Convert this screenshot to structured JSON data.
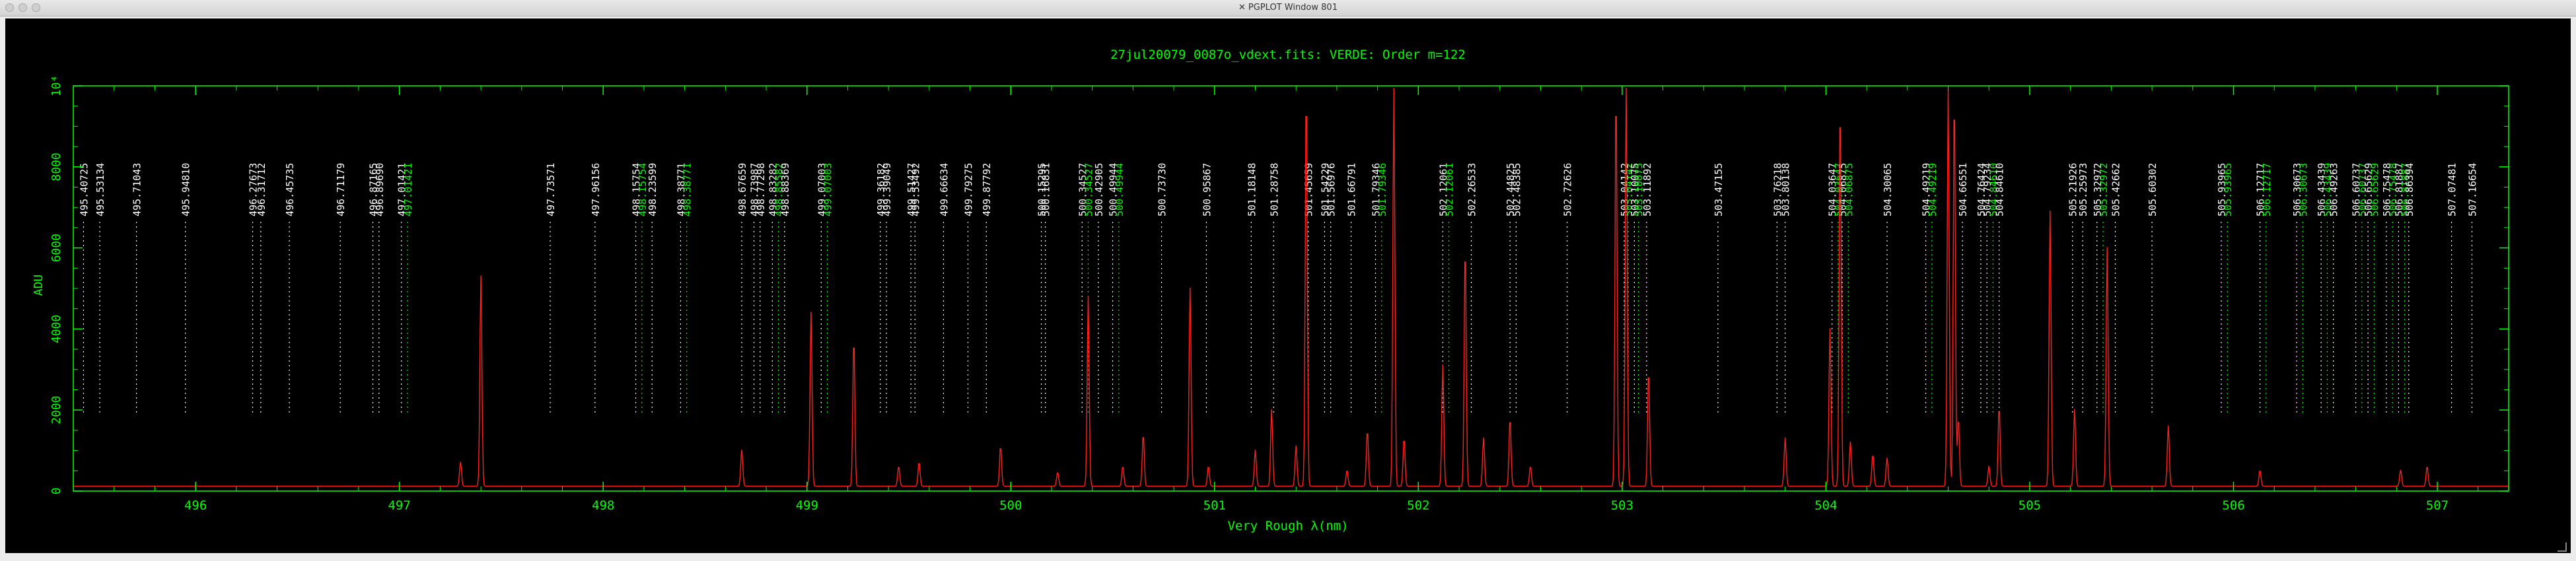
{
  "window": {
    "title": "PGPLOT Window 801",
    "x_icon": "x11-icon",
    "buttons": [
      "close-button",
      "minimize-button",
      "zoom-button"
    ]
  },
  "colors": {
    "axes": "#00ff00",
    "spectrum": "#ff2020",
    "label_white": "#ffffff",
    "label_green": "#00ff00",
    "background": "#000000"
  },
  "chart_data": {
    "type": "line",
    "title": "27jul20079_0087o_vdext.fits: VERDE: Order m=122",
    "xlabel": "Very Rough λ(nm)",
    "ylabel": "ADU",
    "xlim": [
      495.4,
      507.35
    ],
    "ylim": [
      0,
      10000
    ],
    "x_ticks": [
      496,
      497,
      498,
      499,
      500,
      501,
      502,
      503,
      504,
      505,
      506,
      507
    ],
    "y_ticks": [
      {
        "v": 0,
        "t": "0"
      },
      {
        "v": 2000,
        "t": "2000"
      },
      {
        "v": 4000,
        "t": "4000"
      },
      {
        "v": 6000,
        "t": "6000"
      },
      {
        "v": 8000,
        "t": "8000"
      },
      {
        "v": 10000,
        "t": "10⁴"
      }
    ],
    "grid": false,
    "spectrum": {
      "baseline": 120,
      "peaks": [
        [
          497.3,
          600
        ],
        [
          497.4,
          5200
        ],
        [
          498.68,
          900
        ],
        [
          499.02,
          4300
        ],
        [
          499.23,
          3700
        ],
        [
          499.45,
          500
        ],
        [
          499.55,
          600
        ],
        [
          499.95,
          1000
        ],
        [
          500.23,
          350
        ],
        [
          500.38,
          4700
        ],
        [
          500.55,
          500
        ],
        [
          500.65,
          1300
        ],
        [
          500.88,
          4900
        ],
        [
          500.97,
          500
        ],
        [
          501.2,
          900
        ],
        [
          501.28,
          1900
        ],
        [
          501.4,
          1000
        ],
        [
          501.45,
          9900
        ],
        [
          501.65,
          400
        ],
        [
          501.75,
          1400
        ],
        [
          501.88,
          9900
        ],
        [
          501.93,
          1200
        ],
        [
          502.12,
          3000
        ],
        [
          502.23,
          6000
        ],
        [
          502.32,
          1200
        ],
        [
          502.45,
          1700
        ],
        [
          502.55,
          500
        ],
        [
          502.97,
          9900
        ],
        [
          503.02,
          9900
        ],
        [
          503.13,
          2900
        ],
        [
          503.8,
          1200
        ],
        [
          504.02,
          3900
        ],
        [
          504.07,
          9600
        ],
        [
          504.12,
          1100
        ],
        [
          504.23,
          800
        ],
        [
          504.3,
          700
        ],
        [
          504.6,
          9800
        ],
        [
          504.63,
          9800
        ],
        [
          504.65,
          1700
        ],
        [
          504.8,
          500
        ],
        [
          504.85,
          2000
        ],
        [
          505.1,
          6800
        ],
        [
          505.22,
          1900
        ],
        [
          505.38,
          5900
        ],
        [
          505.68,
          1500
        ],
        [
          506.13,
          400
        ],
        [
          506.82,
          400
        ],
        [
          506.95,
          500
        ]
      ]
    },
    "line_labels": [
      {
        "x": 495.45,
        "t": "495.40725",
        "c": "white"
      },
      {
        "x": 495.53,
        "t": "495.53134",
        "c": "white"
      },
      {
        "x": 495.71,
        "t": "495.71043",
        "c": "white"
      },
      {
        "x": 495.95,
        "t": "495.94810",
        "c": "white"
      },
      {
        "x": 496.28,
        "t": "496.27673",
        "c": "white"
      },
      {
        "x": 496.32,
        "t": "496.31712",
        "c": "white"
      },
      {
        "x": 496.46,
        "t": "496.45735",
        "c": "white"
      },
      {
        "x": 496.71,
        "t": "496.71179",
        "c": "white"
      },
      {
        "x": 496.87,
        "t": "496.87165",
        "c": "white"
      },
      {
        "x": 496.9,
        "t": "496.89690",
        "c": "white"
      },
      {
        "x": 497.01,
        "t": "497.01421",
        "c": "white"
      },
      {
        "x": 497.04,
        "t": "497.01421",
        "c": "green"
      },
      {
        "x": 497.74,
        "t": "497.73571",
        "c": "white"
      },
      {
        "x": 497.96,
        "t": "497.96156",
        "c": "white"
      },
      {
        "x": 498.16,
        "t": "498.15754",
        "c": "white"
      },
      {
        "x": 498.19,
        "t": "498.15754",
        "c": "green"
      },
      {
        "x": 498.24,
        "t": "498.23599",
        "c": "white"
      },
      {
        "x": 498.38,
        "t": "498.38771",
        "c": "white"
      },
      {
        "x": 498.41,
        "t": "498.38771",
        "c": "green"
      },
      {
        "x": 498.68,
        "t": "498.67659",
        "c": "white"
      },
      {
        "x": 498.74,
        "t": "498.73987",
        "c": "white"
      },
      {
        "x": 498.77,
        "t": "498.77298",
        "c": "white"
      },
      {
        "x": 498.83,
        "t": "498.83282",
        "c": "white"
      },
      {
        "x": 498.86,
        "t": "498.85582",
        "c": "green"
      },
      {
        "x": 498.89,
        "t": "498.88369",
        "c": "white"
      },
      {
        "x": 499.07,
        "t": "499.07003",
        "c": "white"
      },
      {
        "x": 499.1,
        "t": "499.07003",
        "c": "green"
      },
      {
        "x": 499.36,
        "t": "499.36182",
        "c": "white"
      },
      {
        "x": 499.39,
        "t": "499.39049",
        "c": "white"
      },
      {
        "x": 499.51,
        "t": "499.51427",
        "c": "white"
      },
      {
        "x": 499.53,
        "t": "499.53492",
        "c": "white"
      },
      {
        "x": 499.67,
        "t": "499.66634",
        "c": "white"
      },
      {
        "x": 499.79,
        "t": "499.79275",
        "c": "white"
      },
      {
        "x": 499.88,
        "t": "499.87792",
        "c": "white"
      },
      {
        "x": 500.15,
        "t": "500.15295",
        "c": "white"
      },
      {
        "x": 500.17,
        "t": "500.16831",
        "c": "white"
      },
      {
        "x": 500.35,
        "t": "500.34527",
        "c": "white"
      },
      {
        "x": 500.38,
        "t": "500.34527",
        "c": "green"
      },
      {
        "x": 500.43,
        "t": "500.42905",
        "c": "white"
      },
      {
        "x": 500.5,
        "t": "500.49944",
        "c": "white"
      },
      {
        "x": 500.53,
        "t": "500.49944",
        "c": "green"
      },
      {
        "x": 500.74,
        "t": "500.73730",
        "c": "white"
      },
      {
        "x": 500.96,
        "t": "500.95867",
        "c": "white"
      },
      {
        "x": 501.18,
        "t": "501.18148",
        "c": "white"
      },
      {
        "x": 501.29,
        "t": "501.28758",
        "c": "white"
      },
      {
        "x": 501.46,
        "t": "501.45659",
        "c": "white"
      },
      {
        "x": 501.54,
        "t": "501.54229",
        "c": "white"
      },
      {
        "x": 501.57,
        "t": "501.56976",
        "c": "white"
      },
      {
        "x": 501.67,
        "t": "501.66791",
        "c": "white"
      },
      {
        "x": 501.79,
        "t": "501.79346",
        "c": "white"
      },
      {
        "x": 501.82,
        "t": "501.79346",
        "c": "green"
      },
      {
        "x": 502.12,
        "t": "502.12061",
        "c": "white"
      },
      {
        "x": 502.15,
        "t": "502.12061",
        "c": "green"
      },
      {
        "x": 502.26,
        "t": "502.26533",
        "c": "white"
      },
      {
        "x": 502.45,
        "t": "502.44825",
        "c": "white"
      },
      {
        "x": 502.48,
        "t": "502.48385",
        "c": "white"
      },
      {
        "x": 502.73,
        "t": "502.72626",
        "c": "white"
      },
      {
        "x": 503.01,
        "t": "503.04142",
        "c": "white"
      },
      {
        "x": 503.03,
        "t": "503.04142",
        "c": "green"
      },
      {
        "x": 503.06,
        "t": "503.10075",
        "c": "white"
      },
      {
        "x": 503.08,
        "t": "503.10075",
        "c": "green"
      },
      {
        "x": 503.12,
        "t": "503.11892",
        "c": "white"
      },
      {
        "x": 503.47,
        "t": "503.47155",
        "c": "white"
      },
      {
        "x": 503.76,
        "t": "503.76218",
        "c": "white"
      },
      {
        "x": 503.8,
        "t": "503.80138",
        "c": "white"
      },
      {
        "x": 504.03,
        "t": "504.03647",
        "c": "white"
      },
      {
        "x": 504.06,
        "t": "504.03647",
        "c": "green"
      },
      {
        "x": 504.08,
        "t": "504.06875",
        "c": "white"
      },
      {
        "x": 504.11,
        "t": "504.06875",
        "c": "green"
      },
      {
        "x": 504.3,
        "t": "504.30065",
        "c": "white"
      },
      {
        "x": 504.49,
        "t": "504.49219",
        "c": "white"
      },
      {
        "x": 504.52,
        "t": "504.49219",
        "c": "green"
      },
      {
        "x": 504.67,
        "t": "504.66551",
        "c": "white"
      },
      {
        "x": 504.76,
        "t": "504.76424",
        "c": "white"
      },
      {
        "x": 504.79,
        "t": "504.79234",
        "c": "white"
      },
      {
        "x": 504.82,
        "t": "504.84610",
        "c": "green"
      },
      {
        "x": 504.85,
        "t": "504.84610",
        "c": "white"
      },
      {
        "x": 505.21,
        "t": "505.21926",
        "c": "white"
      },
      {
        "x": 505.26,
        "t": "505.25973",
        "c": "white"
      },
      {
        "x": 505.33,
        "t": "505.32972",
        "c": "white"
      },
      {
        "x": 505.36,
        "t": "505.32972",
        "c": "green"
      },
      {
        "x": 505.42,
        "t": "505.42662",
        "c": "white"
      },
      {
        "x": 505.6,
        "t": "505.60302",
        "c": "white"
      },
      {
        "x": 505.94,
        "t": "505.93965",
        "c": "white"
      },
      {
        "x": 505.97,
        "t": "505.93965",
        "c": "green"
      },
      {
        "x": 506.13,
        "t": "506.12717",
        "c": "white"
      },
      {
        "x": 506.16,
        "t": "506.12717",
        "c": "green"
      },
      {
        "x": 506.31,
        "t": "506.30673",
        "c": "white"
      },
      {
        "x": 506.34,
        "t": "506.30673",
        "c": "green"
      },
      {
        "x": 506.43,
        "t": "506.43439",
        "c": "white"
      },
      {
        "x": 506.46,
        "t": "506.43439",
        "c": "green"
      },
      {
        "x": 506.49,
        "t": "506.49263",
        "c": "white"
      },
      {
        "x": 506.6,
        "t": "506.60737",
        "c": "white"
      },
      {
        "x": 506.63,
        "t": "506.60737",
        "c": "green"
      },
      {
        "x": 506.66,
        "t": "506.65629",
        "c": "white"
      },
      {
        "x": 506.69,
        "t": "506.65629",
        "c": "green"
      },
      {
        "x": 506.75,
        "t": "506.75478",
        "c": "white"
      },
      {
        "x": 506.78,
        "t": "506.75478",
        "c": "green"
      },
      {
        "x": 506.81,
        "t": "506.81887",
        "c": "white"
      },
      {
        "x": 506.84,
        "t": "506.81887",
        "c": "green"
      },
      {
        "x": 506.86,
        "t": "506.86394",
        "c": "white"
      },
      {
        "x": 507.07,
        "t": "507.07481",
        "c": "white"
      },
      {
        "x": 507.17,
        "t": "507.16654",
        "c": "white"
      }
    ]
  }
}
